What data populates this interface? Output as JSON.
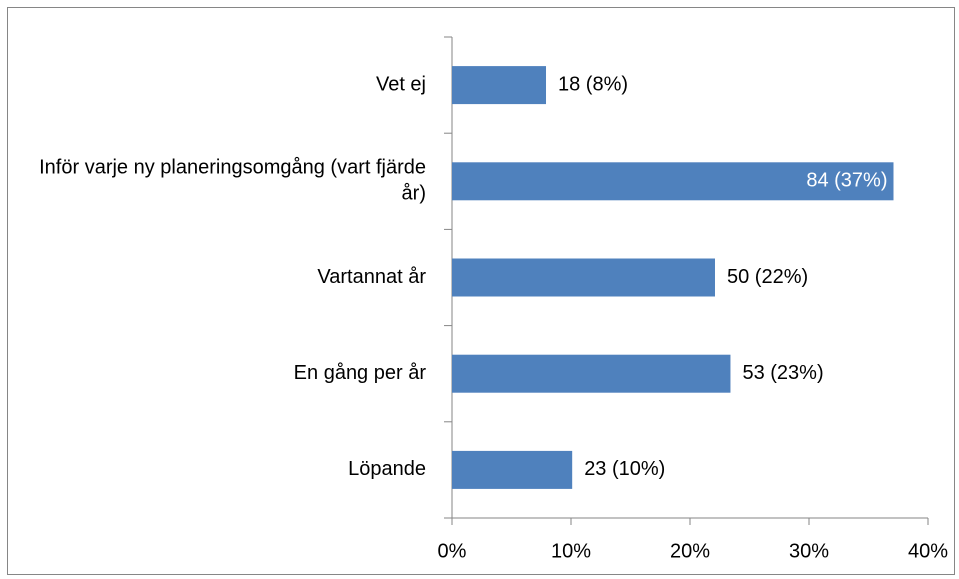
{
  "chart_data": {
    "type": "barh",
    "categories": [
      "Vet ej",
      "Inför varje ny planeringsomgång (vart fjärde år)",
      "Vartannat år",
      "En gång per år",
      "Löpande"
    ],
    "values": [
      7.9,
      37.1,
      22.1,
      23.4,
      10.1
    ],
    "value_labels": [
      "18 (8%)",
      "84 (37%)",
      "50 (22%)",
      "53 (23%)",
      "23 (10%)"
    ],
    "color": "#4f81bd",
    "xlim": [
      0,
      40
    ],
    "xticks": [
      {
        "value": 0,
        "label": "0%"
      },
      {
        "value": 10,
        "label": "10%"
      },
      {
        "value": 20,
        "label": "20%"
      },
      {
        "value": 30,
        "label": "30%"
      },
      {
        "value": 40,
        "label": "40%"
      }
    ]
  }
}
